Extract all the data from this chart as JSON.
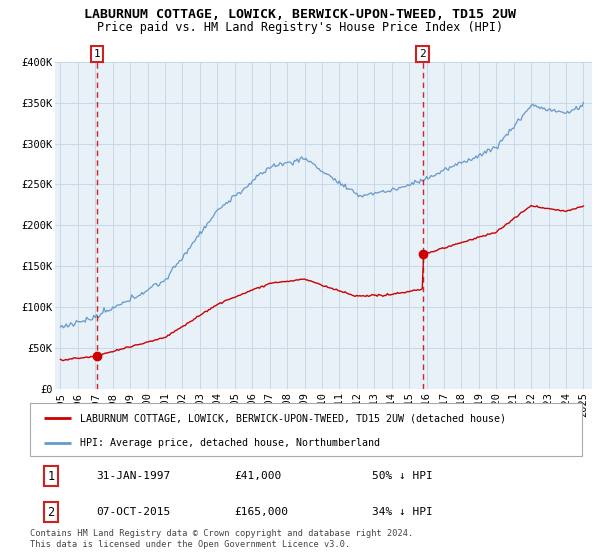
{
  "title": "LABURNUM COTTAGE, LOWICK, BERWICK-UPON-TWEED, TD15 2UW",
  "subtitle": "Price paid vs. HM Land Registry's House Price Index (HPI)",
  "ylim": [
    0,
    400000
  ],
  "yticks": [
    0,
    50000,
    100000,
    150000,
    200000,
    250000,
    300000,
    350000,
    400000
  ],
  "ytick_labels": [
    "£0",
    "£50K",
    "£100K",
    "£150K",
    "£200K",
    "£250K",
    "£300K",
    "£350K",
    "£400K"
  ],
  "xlim_start": 1994.7,
  "xlim_end": 2025.5,
  "plot_bg_color": "#e8f0f8",
  "grid_color": "#c8d8e8",
  "hpi_color": "#6699cc",
  "house_color": "#cc0000",
  "sale1_x": 1997.08,
  "sale1_y": 41000,
  "sale1_label": "1",
  "sale2_x": 2015.77,
  "sale2_y": 165000,
  "sale2_label": "2",
  "legend_house": "LABURNUM COTTAGE, LOWICK, BERWICK-UPON-TWEED, TD15 2UW (detached house)",
  "legend_hpi": "HPI: Average price, detached house, Northumberland",
  "table_row1": [
    "1",
    "31-JAN-1997",
    "£41,000",
    "50% ↓ HPI"
  ],
  "table_row2": [
    "2",
    "07-OCT-2015",
    "£165,000",
    "34% ↓ HPI"
  ],
  "footnote": "Contains HM Land Registry data © Crown copyright and database right 2024.\nThis data is licensed under the Open Government Licence v3.0.",
  "title_fontsize": 9.5,
  "subtitle_fontsize": 8.5,
  "axis_fontsize": 7.5,
  "xticks": [
    1995,
    1996,
    1997,
    1998,
    1999,
    2000,
    2001,
    2002,
    2003,
    2004,
    2005,
    2006,
    2007,
    2008,
    2009,
    2010,
    2011,
    2012,
    2013,
    2014,
    2015,
    2016,
    2017,
    2018,
    2019,
    2020,
    2021,
    2022,
    2023,
    2024,
    2025
  ]
}
